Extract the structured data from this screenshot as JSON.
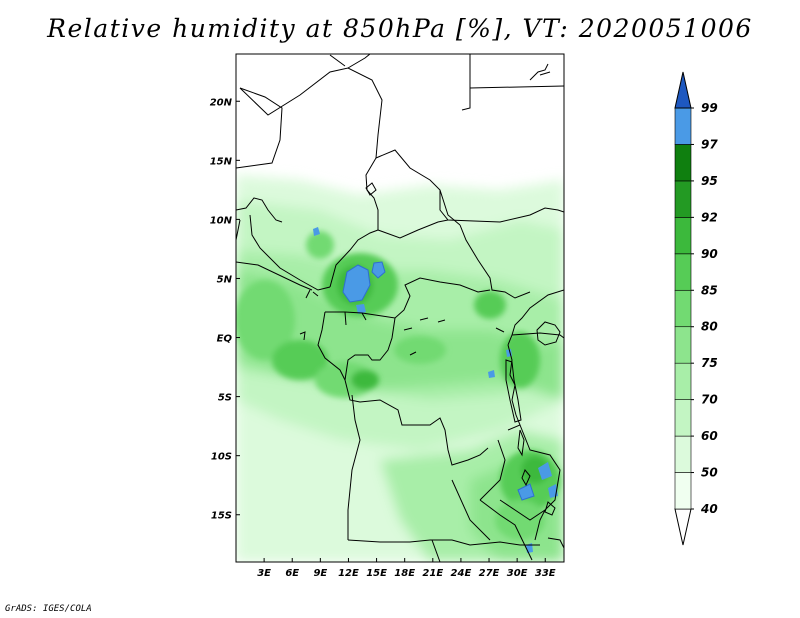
{
  "title": "Relative humidity at 850hPa [%], VT: 2020051006",
  "footer": "GrADS: IGES/COLA",
  "map": {
    "lon_labels": [
      "3E",
      "6E",
      "9E",
      "12E",
      "15E",
      "18E",
      "21E",
      "24E",
      "27E",
      "30E",
      "33E"
    ],
    "lat_labels": [
      "20N",
      "15N",
      "10N",
      "5N",
      "EQ",
      "5S",
      "10S",
      "15S"
    ],
    "lon_range": [
      0,
      35
    ],
    "lat_range": [
      -19,
      24
    ]
  },
  "colorbar": {
    "levels": [
      "40",
      "50",
      "60",
      "70",
      "75",
      "80",
      "85",
      "90",
      "92",
      "95",
      "97",
      "99"
    ],
    "colors": [
      "#f0fff0",
      "#dcfadc",
      "#c3f5c3",
      "#a8eea8",
      "#8de48d",
      "#72da72",
      "#56cc56",
      "#3cb93c",
      "#239a23",
      "#0f7f0f",
      "#4a9ae6",
      "#2f6fd0",
      "#1e58c0"
    ],
    "under_color": "#ffffff"
  }
}
